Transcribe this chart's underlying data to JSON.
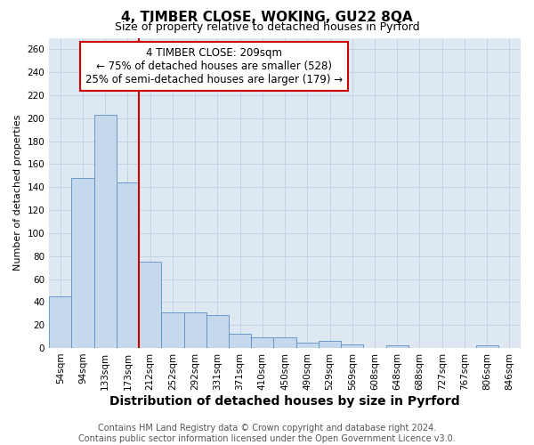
{
  "title1": "4, TIMBER CLOSE, WOKING, GU22 8QA",
  "title2": "Size of property relative to detached houses in Pyrford",
  "xlabel": "Distribution of detached houses by size in Pyrford",
  "ylabel": "Number of detached properties",
  "categories": [
    "54sqm",
    "94sqm",
    "133sqm",
    "173sqm",
    "212sqm",
    "252sqm",
    "292sqm",
    "331sqm",
    "371sqm",
    "410sqm",
    "450sqm",
    "490sqm",
    "529sqm",
    "569sqm",
    "608sqm",
    "648sqm",
    "688sqm",
    "727sqm",
    "767sqm",
    "806sqm",
    "846sqm"
  ],
  "values": [
    45,
    148,
    203,
    144,
    75,
    31,
    31,
    29,
    12,
    9,
    9,
    5,
    6,
    3,
    0,
    2,
    0,
    0,
    0,
    2,
    0
  ],
  "bar_color": "#c5d8ec",
  "bar_edge_color": "#5a8fc2",
  "red_line_x": 3.5,
  "annotation_line0": "4 TIMBER CLOSE: 209sqm",
  "annotation_line1": "← 75% of detached houses are smaller (528)",
  "annotation_line2": "25% of semi-detached houses are larger (179) →",
  "ylim": [
    0,
    270
  ],
  "yticks": [
    0,
    20,
    40,
    60,
    80,
    100,
    120,
    140,
    160,
    180,
    200,
    220,
    240,
    260
  ],
  "footer1": "Contains HM Land Registry data © Crown copyright and database right 2024.",
  "footer2": "Contains public sector information licensed under the Open Government Licence v3.0.",
  "plot_bg_color": "#dde8f3",
  "background_color": "#ffffff",
  "grid_color": "#c0cfe0",
  "annotation_box_color": "#ffffff",
  "annotation_box_edge": "#cc0000",
  "title1_fontsize": 11,
  "title2_fontsize": 9,
  "xlabel_fontsize": 10,
  "ylabel_fontsize": 8,
  "tick_fontsize": 7.5,
  "footer_fontsize": 7,
  "annotation_fontsize": 8.5
}
